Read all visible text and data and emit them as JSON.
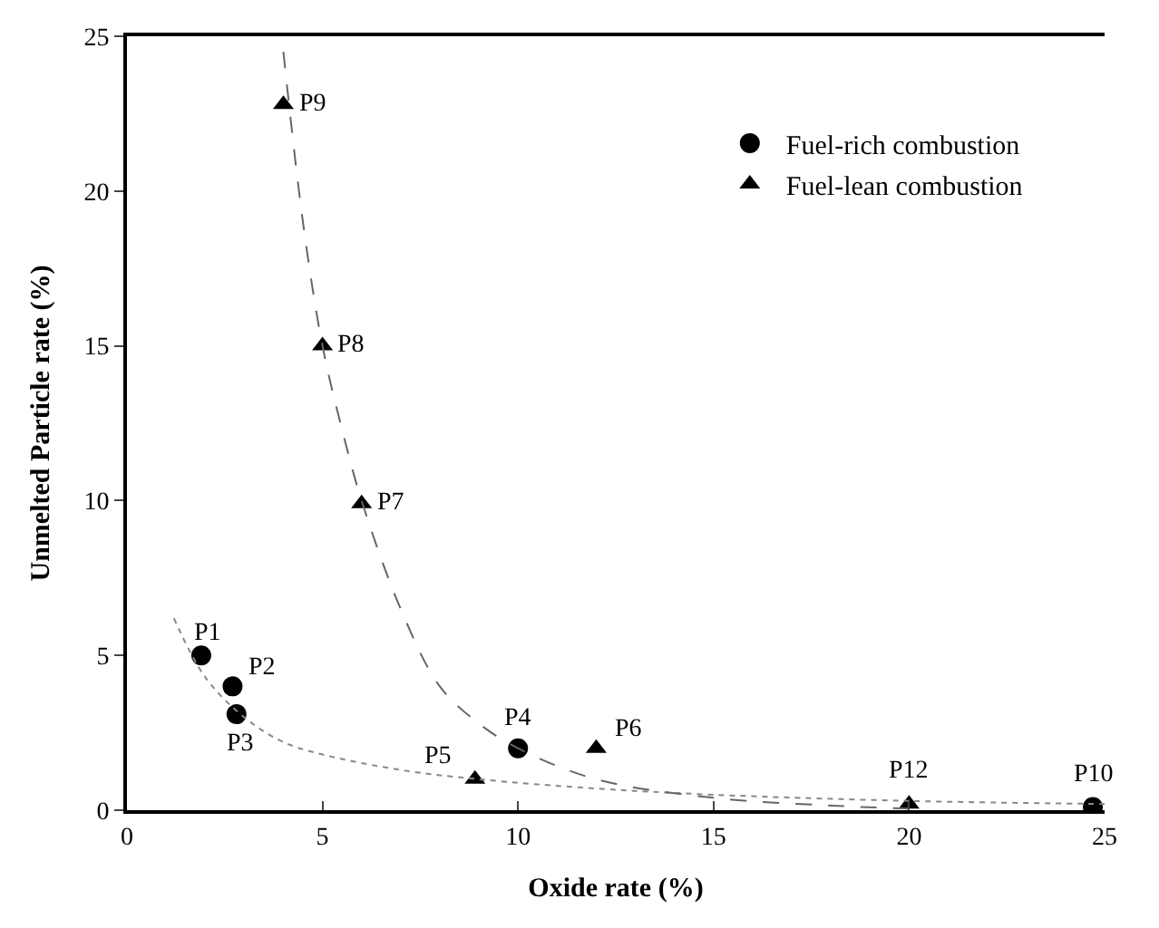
{
  "chart_data": {
    "type": "scatter",
    "xlabel": "Oxide rate (%)",
    "ylabel": "Unmelted Particle rate (%)",
    "xlim": [
      0,
      25
    ],
    "ylim": [
      0,
      25
    ],
    "xticks": [
      0,
      5,
      10,
      15,
      20,
      25
    ],
    "yticks": [
      0,
      5,
      10,
      15,
      20,
      25
    ],
    "legend": "top right",
    "series": [
      {
        "name": "Fuel-rich combustion",
        "color": "#000000",
        "marker": "circle",
        "x": [
          1.9,
          2.7,
          2.8,
          10,
          24.7
        ],
        "values": [
          5,
          4,
          3.1,
          2,
          0.1
        ]
      },
      {
        "name": "Fuel-lean combustion",
        "color": "#000000",
        "marker": "triangle",
        "x": [
          8.9,
          12,
          6,
          5,
          4,
          20
        ],
        "values": [
          1,
          2,
          9.9,
          15,
          22.8,
          0.2
        ]
      },
      {
        "type": "line",
        "color": "#888888",
        "line_style": "dotted",
        "x": [
          1.2,
          2,
          3,
          4,
          5,
          7,
          9,
          12,
          15,
          20,
          25
        ],
        "values": [
          6.2,
          4.3,
          3,
          2.2,
          1.8,
          1.3,
          1,
          0.7,
          0.5,
          0.3,
          0.2
        ]
      },
      {
        "type": "line",
        "color": "#666666",
        "line_style": "dashed",
        "x": [
          4,
          4.5,
          5,
          5.5,
          6,
          7,
          8,
          9,
          10,
          12,
          15,
          18,
          20
        ],
        "values": [
          24.5,
          19,
          15,
          12.3,
          10,
          6.5,
          4,
          2.8,
          2,
          1,
          0.4,
          0.15,
          0.05
        ]
      }
    ],
    "annotations": [
      {
        "text": "P1",
        "x": 1.9,
        "y": 5
      },
      {
        "text": "P2",
        "x": 2.7,
        "y": 4
      },
      {
        "text": "P3",
        "x": 2.8,
        "y": 3.1
      },
      {
        "text": "P4",
        "x": 10,
        "y": 2
      },
      {
        "text": "P5",
        "x": 8.9,
        "y": 1
      },
      {
        "text": "P6",
        "x": 12,
        "y": 2
      },
      {
        "text": "P7",
        "x": 6,
        "y": 9.9
      },
      {
        "text": "P8",
        "x": 5,
        "y": 15
      },
      {
        "text": "P9",
        "x": 4,
        "y": 22.8
      },
      {
        "text": "P12",
        "x": 20,
        "y": 0.2
      },
      {
        "text": "P10",
        "x": 24.7,
        "y": 0.1
      }
    ]
  }
}
